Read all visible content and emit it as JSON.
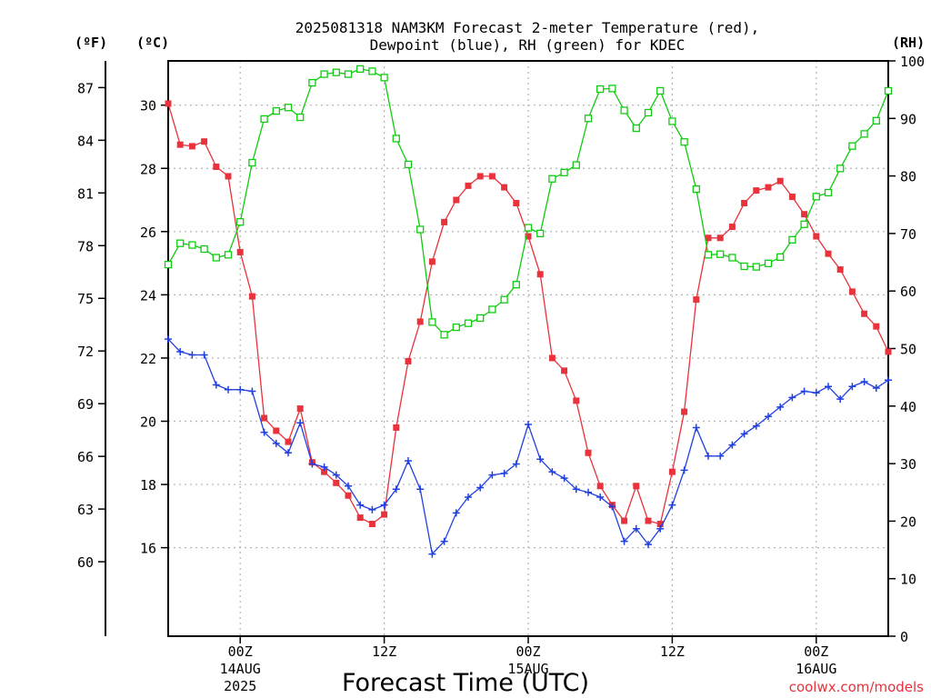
{
  "title": {
    "line1": "2025081318 NAM3KM Forecast 2-meter Temperature (red),",
    "line2": "Dewpoint (blue), RH (green) for KDEC"
  },
  "axes": {
    "left_f_label": "(ºF)",
    "left_c_label": "(ºC)",
    "right_label": "(RH)",
    "x_label": "Forecast Time (UTC)",
    "f_ticks": [
      "87",
      "84",
      "81",
      "78",
      "75",
      "72",
      "69",
      "66",
      "63",
      "60"
    ],
    "c_ticks": [
      "30",
      "28",
      "26",
      "24",
      "22",
      "20",
      "18",
      "16"
    ],
    "rh_ticks": [
      "100",
      "90",
      "80",
      "70",
      "60",
      "50",
      "40",
      "30",
      "20",
      "10",
      "0"
    ],
    "x_ticks": [
      {
        "hour": 6,
        "line1": "00Z",
        "line2": "14AUG",
        "line3": "2025"
      },
      {
        "hour": 18,
        "line1": "12Z",
        "line2": "",
        "line3": ""
      },
      {
        "hour": 30,
        "line1": "00Z",
        "line2": "15AUG",
        "line3": ""
      },
      {
        "hour": 42,
        "line1": "12Z",
        "line2": "",
        "line3": ""
      },
      {
        "hour": 54,
        "line1": "00Z",
        "line2": "16AUG",
        "line3": ""
      }
    ]
  },
  "credit": "coolwx.com/models",
  "colors": {
    "temperature": "#e8323c",
    "dewpoint": "#2040e0",
    "rh": "#10cc10",
    "grid": "#b4b4b4"
  },
  "chart_data": {
    "type": "line",
    "x_unit": "forecast hour from 2025081318",
    "xlim": [
      0,
      60
    ],
    "ylim_c": [
      13.2,
      31.4
    ],
    "ylim_rh": [
      0,
      100
    ],
    "grid": true,
    "x": [
      0,
      1,
      2,
      3,
      4,
      5,
      6,
      7,
      8,
      9,
      10,
      11,
      12,
      13,
      14,
      15,
      16,
      17,
      18,
      19,
      20,
      21,
      22,
      23,
      24,
      25,
      26,
      27,
      28,
      29,
      30,
      31,
      32,
      33,
      34,
      35,
      36,
      37,
      38,
      39,
      40,
      41,
      42,
      43,
      44,
      45,
      46,
      47,
      48,
      49,
      50,
      51,
      52,
      53,
      54,
      55,
      56,
      57,
      58,
      59,
      60
    ],
    "series": [
      {
        "name": "Temperature",
        "axis": "C",
        "values": [
          30.05,
          28.75,
          28.7,
          28.85,
          28.05,
          27.75,
          25.35,
          23.95,
          20.1,
          19.7,
          19.35,
          20.4,
          18.7,
          18.4,
          18.05,
          17.65,
          16.95,
          16.75,
          17.05,
          19.8,
          21.9,
          23.15,
          25.05,
          26.3,
          27.0,
          27.45,
          27.75,
          27.75,
          27.4,
          26.9,
          25.85,
          24.65,
          22.0,
          21.6,
          20.65,
          19.0,
          17.95,
          17.35,
          16.85,
          17.95,
          16.85,
          16.75,
          18.4,
          20.3,
          23.85,
          25.8,
          25.8,
          26.15,
          26.9,
          27.3,
          27.4,
          27.6,
          27.1,
          26.55,
          25.85,
          25.3,
          24.8,
          24.1,
          23.4,
          23.0,
          22.2
        ]
      },
      {
        "name": "Dewpoint",
        "axis": "C",
        "values": [
          22.6,
          22.2,
          22.1,
          22.1,
          21.15,
          21.0,
          21.0,
          20.95,
          19.65,
          19.3,
          19.0,
          19.95,
          18.65,
          18.55,
          18.3,
          17.95,
          17.35,
          17.2,
          17.35,
          17.85,
          18.75,
          17.85,
          15.8,
          16.2,
          17.1,
          17.6,
          17.9,
          18.3,
          18.35,
          18.65,
          19.9,
          18.8,
          18.4,
          18.2,
          17.85,
          17.75,
          17.6,
          17.3,
          16.2,
          16.6,
          16.1,
          16.6,
          17.35,
          18.45,
          19.8,
          18.9,
          18.9,
          19.25,
          19.6,
          19.85,
          20.15,
          20.45,
          20.75,
          20.95,
          20.9,
          21.1,
          20.7,
          21.1,
          21.25,
          21.05,
          21.3
        ]
      },
      {
        "name": "RH",
        "axis": "RH",
        "values": [
          64.6,
          68.3,
          68.0,
          67.3,
          65.8,
          66.3,
          72.0,
          82.3,
          89.9,
          91.3,
          91.9,
          90.2,
          96.2,
          97.7,
          98.0,
          97.7,
          98.6,
          98.2,
          97.1,
          86.5,
          82.0,
          70.7,
          54.6,
          52.4,
          53.7,
          54.4,
          55.3,
          56.8,
          58.5,
          61.1,
          71.0,
          70.0,
          79.5,
          80.6,
          81.9,
          90.0,
          95.1,
          95.2,
          91.4,
          88.3,
          91.0,
          94.8,
          89.5,
          85.9,
          77.7,
          66.3,
          66.4,
          65.8,
          64.3,
          64.2,
          64.8,
          65.9,
          68.9,
          71.6,
          76.4,
          77.1,
          81.3,
          85.2,
          87.3,
          89.6,
          94.8
        ]
      }
    ]
  }
}
